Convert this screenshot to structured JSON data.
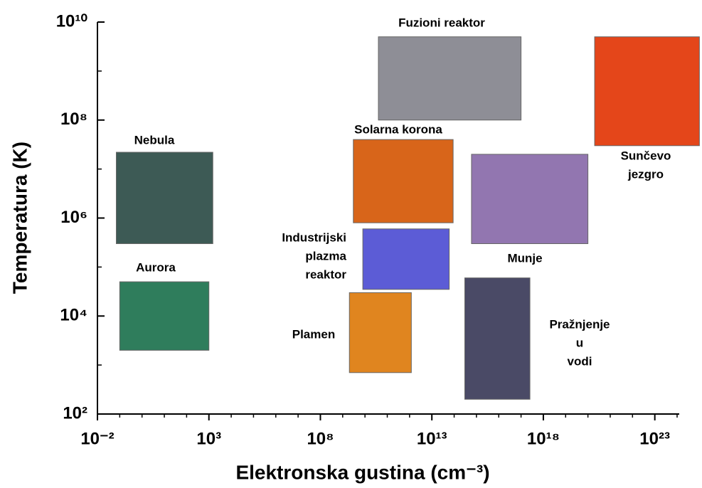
{
  "chart_data": {
    "type": "range-boxes",
    "x_label": "Elektronska gustina (cm⁻³)",
    "y_label": "Temperatura (K)",
    "xlog": true,
    "ylog": true,
    "xlim": [
      0.01,
      1e+24
    ],
    "ylim": [
      100,
      10000000000.0
    ],
    "xticks": [
      {
        "value": 0.01,
        "label": "10⁻²"
      },
      {
        "value": 1000,
        "label": "10³"
      },
      {
        "value": 100000000.0,
        "label": "10⁸"
      },
      {
        "value": 10000000000000.0,
        "label": "10¹³"
      },
      {
        "value": 1e+18,
        "label": "10¹⁸"
      },
      {
        "value": 1e+23,
        "label": "10²³"
      }
    ],
    "xminor": [
      0.1,
      1,
      10,
      100,
      10000.0,
      100000.0,
      1000000.0,
      10000000.0,
      1000000000.0,
      10000000000.0,
      100000000000.0,
      1000000000000.0,
      100000000000000.0,
      1000000000000000.0,
      1e+16,
      1e+17,
      1e+19,
      1e+20,
      1e+21,
      1e+22,
      1e+24
    ],
    "yticks": [
      {
        "value": 100,
        "label": "10²"
      },
      {
        "value": 10000,
        "label": "10⁴"
      },
      {
        "value": 1000000,
        "label": "10⁶"
      },
      {
        "value": 100000000,
        "label": "10⁸"
      },
      {
        "value": 10000000000,
        "label": "10¹⁰"
      }
    ],
    "yminor": [
      1000,
      100000,
      10000000,
      1000000000
    ],
    "items": [
      {
        "label": [
          "Nebula"
        ],
        "color": "#3d5a55",
        "xrange": [
          0.07,
          1500
        ],
        "yrange": [
          300000,
          22000000
        ]
      },
      {
        "label": [
          "Aurora"
        ],
        "color": "#2f7d5c",
        "xrange": [
          0.1,
          1000
        ],
        "yrange": [
          2000,
          50000
        ]
      },
      {
        "label": [
          "Fuzioni reaktor"
        ],
        "color": "#8e8e96",
        "xrange": [
          40000000000,
          1e+17
        ],
        "yrange": [
          100000000,
          5000000000
        ]
      },
      {
        "label": [
          "Solarna korona"
        ],
        "color": "#d8651a",
        "xrange": [
          3000000000,
          90000000000000
        ],
        "yrange": [
          800000,
          40000000
        ]
      },
      {
        "label": [
          "Industrijski",
          "plazma",
          "reaktor"
        ],
        "color": "#5c5cd6",
        "xrange": [
          8000000000,
          60000000000000
        ],
        "yrange": [
          35000,
          600000
        ]
      },
      {
        "label": [
          "Plamen"
        ],
        "color": "#e0851f",
        "xrange": [
          2000000000,
          1200000000000
        ],
        "yrange": [
          700,
          30000
        ]
      },
      {
        "label": [
          "Munje"
        ],
        "color": "#9276b0",
        "xrange": [
          600000000000000,
          1e+20
        ],
        "yrange": [
          300000,
          20000000
        ]
      },
      {
        "label": [
          "Pražnjenje",
          "u",
          "vodi"
        ],
        "color": "#4a4a66",
        "xrange": [
          300000000000000,
          2.5e+17
        ],
        "yrange": [
          200,
          60000
        ]
      },
      {
        "label": [
          "Sunčevo",
          "jezgro"
        ],
        "color": "#e4461a",
        "xrange": [
          2e+20,
          1e+25
        ],
        "yrange": [
          30000000,
          5000000000
        ]
      }
    ]
  }
}
